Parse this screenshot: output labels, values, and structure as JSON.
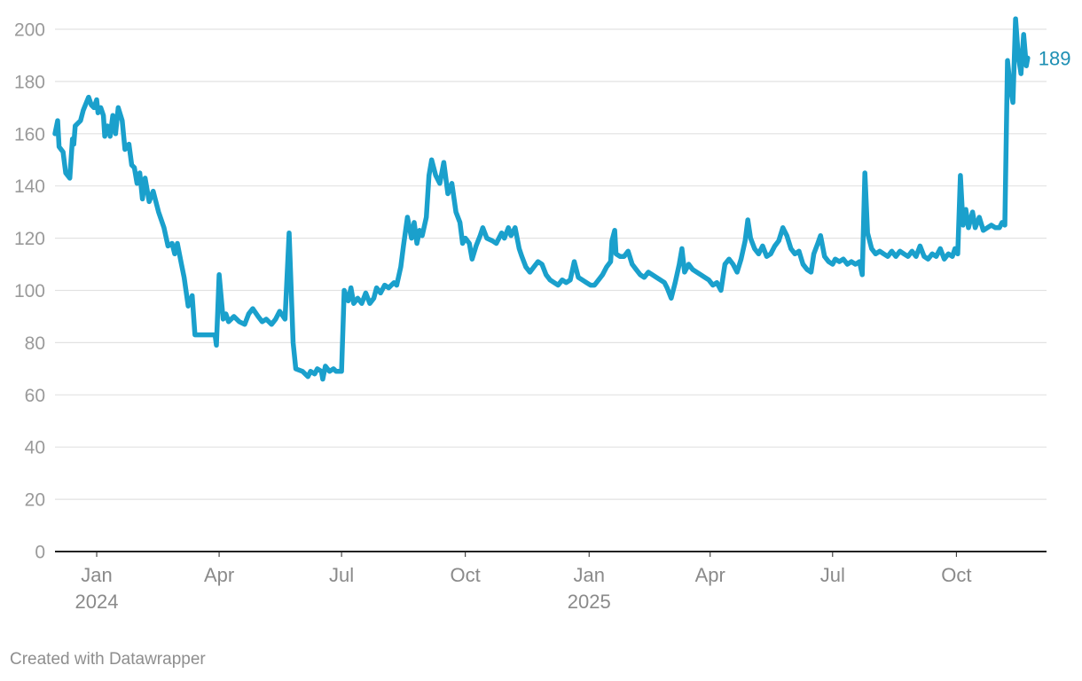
{
  "chart_data": {
    "type": "line",
    "title": "",
    "xlabel": "",
    "ylabel": "",
    "ylim": [
      0,
      200
    ],
    "xlim": [
      "2023-12-01",
      "2025-12-07"
    ],
    "yticks": [
      {
        "value": 0,
        "label": "0"
      },
      {
        "value": 20,
        "label": "20"
      },
      {
        "value": 40,
        "label": "40"
      },
      {
        "value": 60,
        "label": "60"
      },
      {
        "value": 80,
        "label": "80"
      },
      {
        "value": 100,
        "label": "100"
      },
      {
        "value": 120,
        "label": "120"
      },
      {
        "value": 140,
        "label": "140"
      },
      {
        "value": 160,
        "label": "160"
      },
      {
        "value": 180,
        "label": "180"
      },
      {
        "value": 200,
        "label": "200"
      }
    ],
    "xticks": [
      {
        "date": "2024-01-01",
        "label": "Jan",
        "sublabel": "2024"
      },
      {
        "date": "2024-04-01",
        "label": "Apr",
        "sublabel": ""
      },
      {
        "date": "2024-07-01",
        "label": "Jul",
        "sublabel": ""
      },
      {
        "date": "2024-10-01",
        "label": "Oct",
        "sublabel": ""
      },
      {
        "date": "2025-01-01",
        "label": "Jan",
        "sublabel": "2025"
      },
      {
        "date": "2025-04-01",
        "label": "Apr",
        "sublabel": ""
      },
      {
        "date": "2025-07-01",
        "label": "Jul",
        "sublabel": ""
      },
      {
        "date": "2025-10-01",
        "label": "Oct",
        "sublabel": ""
      }
    ],
    "grid": true,
    "color": "#1aa0cc",
    "end_label": "189",
    "series": [
      {
        "points": [
          [
            "2023-12-01",
            160
          ],
          [
            "2023-12-03",
            165
          ],
          [
            "2023-12-04",
            155
          ],
          [
            "2023-12-07",
            153
          ],
          [
            "2023-12-09",
            145
          ],
          [
            "2023-12-12",
            143
          ],
          [
            "2023-12-14",
            158
          ],
          [
            "2023-12-15",
            156
          ],
          [
            "2023-12-16",
            163
          ],
          [
            "2023-12-20",
            165
          ],
          [
            "2023-12-22",
            169
          ],
          [
            "2023-12-26",
            174
          ],
          [
            "2023-12-28",
            171
          ],
          [
            "2023-12-30",
            170
          ],
          [
            "2024-01-01",
            173
          ],
          [
            "2024-01-02",
            168
          ],
          [
            "2024-01-04",
            170
          ],
          [
            "2024-01-06",
            167
          ],
          [
            "2024-01-07",
            159
          ],
          [
            "2024-01-09",
            163
          ],
          [
            "2024-01-11",
            159
          ],
          [
            "2024-01-13",
            167
          ],
          [
            "2024-01-15",
            160
          ],
          [
            "2024-01-17",
            170
          ],
          [
            "2024-01-20",
            165
          ],
          [
            "2024-01-22",
            154
          ],
          [
            "2024-01-25",
            156
          ],
          [
            "2024-01-27",
            148
          ],
          [
            "2024-01-29",
            147
          ],
          [
            "2024-01-31",
            141
          ],
          [
            "2024-02-02",
            145
          ],
          [
            "2024-02-04",
            135
          ],
          [
            "2024-02-06",
            143
          ],
          [
            "2024-02-09",
            134
          ],
          [
            "2024-02-12",
            138
          ],
          [
            "2024-02-16",
            130
          ],
          [
            "2024-02-20",
            124
          ],
          [
            "2024-02-23",
            117
          ],
          [
            "2024-02-26",
            118
          ],
          [
            "2024-02-28",
            114
          ],
          [
            "2024-03-01",
            118
          ],
          [
            "2024-03-04",
            110
          ],
          [
            "2024-03-06",
            105
          ],
          [
            "2024-03-09",
            94
          ],
          [
            "2024-03-12",
            98
          ],
          [
            "2024-03-14",
            83
          ],
          [
            "2024-03-18",
            83
          ],
          [
            "2024-03-22",
            83
          ],
          [
            "2024-03-26",
            83
          ],
          [
            "2024-03-29",
            83
          ],
          [
            "2024-03-30",
            79
          ],
          [
            "2024-04-01",
            106
          ],
          [
            "2024-04-04",
            89
          ],
          [
            "2024-04-06",
            91
          ],
          [
            "2024-04-08",
            88
          ],
          [
            "2024-04-12",
            90
          ],
          [
            "2024-04-16",
            88
          ],
          [
            "2024-04-20",
            87
          ],
          [
            "2024-04-23",
            91
          ],
          [
            "2024-04-26",
            93
          ],
          [
            "2024-04-30",
            90
          ],
          [
            "2024-05-03",
            88
          ],
          [
            "2024-05-06",
            89
          ],
          [
            "2024-05-10",
            87
          ],
          [
            "2024-05-13",
            89
          ],
          [
            "2024-05-16",
            92
          ],
          [
            "2024-05-20",
            89
          ],
          [
            "2024-05-23",
            122
          ],
          [
            "2024-05-26",
            80
          ],
          [
            "2024-05-28",
            70
          ],
          [
            "2024-06-02",
            69
          ],
          [
            "2024-06-06",
            67
          ],
          [
            "2024-06-08",
            69
          ],
          [
            "2024-06-11",
            68
          ],
          [
            "2024-06-13",
            70
          ],
          [
            "2024-06-16",
            69
          ],
          [
            "2024-06-17",
            66
          ],
          [
            "2024-06-19",
            71
          ],
          [
            "2024-06-22",
            69
          ],
          [
            "2024-06-25",
            70
          ],
          [
            "2024-06-27",
            69
          ],
          [
            "2024-07-01",
            69
          ],
          [
            "2024-07-03",
            100
          ],
          [
            "2024-07-06",
            96
          ],
          [
            "2024-07-08",
            101
          ],
          [
            "2024-07-10",
            95
          ],
          [
            "2024-07-13",
            97
          ],
          [
            "2024-07-16",
            95
          ],
          [
            "2024-07-19",
            99
          ],
          [
            "2024-07-22",
            95
          ],
          [
            "2024-07-25",
            97
          ],
          [
            "2024-07-27",
            101
          ],
          [
            "2024-07-30",
            99
          ],
          [
            "2024-08-02",
            102
          ],
          [
            "2024-08-05",
            101
          ],
          [
            "2024-08-09",
            103
          ],
          [
            "2024-08-11",
            102
          ],
          [
            "2024-08-14",
            109
          ],
          [
            "2024-08-16",
            117
          ],
          [
            "2024-08-19",
            128
          ],
          [
            "2024-08-22",
            120
          ],
          [
            "2024-08-24",
            126
          ],
          [
            "2024-08-26",
            118
          ],
          [
            "2024-08-28",
            123
          ],
          [
            "2024-08-30",
            121
          ],
          [
            "2024-09-02",
            128
          ],
          [
            "2024-09-04",
            144
          ],
          [
            "2024-09-06",
            150
          ],
          [
            "2024-09-09",
            144
          ],
          [
            "2024-09-12",
            141
          ],
          [
            "2024-09-15",
            149
          ],
          [
            "2024-09-18",
            137
          ],
          [
            "2024-09-21",
            141
          ],
          [
            "2024-09-24",
            130
          ],
          [
            "2024-09-27",
            126
          ],
          [
            "2024-09-29",
            118
          ],
          [
            "2024-10-01",
            120
          ],
          [
            "2024-10-04",
            118
          ],
          [
            "2024-10-06",
            112
          ],
          [
            "2024-10-09",
            117
          ],
          [
            "2024-10-12",
            121
          ],
          [
            "2024-10-14",
            124
          ],
          [
            "2024-10-17",
            120
          ],
          [
            "2024-10-21",
            119
          ],
          [
            "2024-10-24",
            118
          ],
          [
            "2024-10-28",
            122
          ],
          [
            "2024-10-30",
            120
          ],
          [
            "2024-11-02",
            124
          ],
          [
            "2024-11-04",
            121
          ],
          [
            "2024-11-07",
            124
          ],
          [
            "2024-11-10",
            116
          ],
          [
            "2024-11-12",
            113
          ],
          [
            "2024-11-15",
            109
          ],
          [
            "2024-11-18",
            107
          ],
          [
            "2024-11-21",
            109
          ],
          [
            "2024-11-24",
            111
          ],
          [
            "2024-11-27",
            110
          ],
          [
            "2024-11-30",
            106
          ],
          [
            "2024-12-03",
            104
          ],
          [
            "2024-12-06",
            103
          ],
          [
            "2024-12-09",
            102
          ],
          [
            "2024-12-12",
            104
          ],
          [
            "2024-12-15",
            103
          ],
          [
            "2024-12-18",
            104
          ],
          [
            "2024-12-21",
            111
          ],
          [
            "2024-12-24",
            105
          ],
          [
            "2024-12-27",
            104
          ],
          [
            "2024-12-30",
            103
          ],
          [
            "2025-01-02",
            102
          ],
          [
            "2025-01-05",
            102
          ],
          [
            "2025-01-08",
            104
          ],
          [
            "2025-01-11",
            106
          ],
          [
            "2025-01-14",
            109
          ],
          [
            "2025-01-17",
            111
          ],
          [
            "2025-01-18",
            119
          ],
          [
            "2025-01-20",
            123
          ],
          [
            "2025-01-21",
            114
          ],
          [
            "2025-01-24",
            113
          ],
          [
            "2025-01-27",
            113
          ],
          [
            "2025-01-30",
            115
          ],
          [
            "2025-02-02",
            110
          ],
          [
            "2025-02-05",
            108
          ],
          [
            "2025-02-08",
            106
          ],
          [
            "2025-02-11",
            105
          ],
          [
            "2025-02-14",
            107
          ],
          [
            "2025-02-17",
            106
          ],
          [
            "2025-02-20",
            105
          ],
          [
            "2025-02-23",
            104
          ],
          [
            "2025-02-26",
            103
          ],
          [
            "2025-02-28",
            101
          ],
          [
            "2025-03-03",
            97
          ],
          [
            "2025-03-06",
            103
          ],
          [
            "2025-03-09",
            110
          ],
          [
            "2025-03-11",
            116
          ],
          [
            "2025-03-13",
            107
          ],
          [
            "2025-03-16",
            110
          ],
          [
            "2025-03-19",
            108
          ],
          [
            "2025-03-22",
            107
          ],
          [
            "2025-03-25",
            106
          ],
          [
            "2025-03-28",
            105
          ],
          [
            "2025-03-31",
            104
          ],
          [
            "2025-04-03",
            102
          ],
          [
            "2025-04-06",
            103
          ],
          [
            "2025-04-09",
            100
          ],
          [
            "2025-04-12",
            110
          ],
          [
            "2025-04-15",
            112
          ],
          [
            "2025-04-18",
            110
          ],
          [
            "2025-04-21",
            107
          ],
          [
            "2025-04-24",
            112
          ],
          [
            "2025-04-27",
            119
          ],
          [
            "2025-04-29",
            127
          ],
          [
            "2025-05-01",
            120
          ],
          [
            "2025-05-04",
            116
          ],
          [
            "2025-05-07",
            114
          ],
          [
            "2025-05-10",
            117
          ],
          [
            "2025-05-13",
            113
          ],
          [
            "2025-05-16",
            114
          ],
          [
            "2025-05-19",
            117
          ],
          [
            "2025-05-22",
            119
          ],
          [
            "2025-05-25",
            124
          ],
          [
            "2025-05-28",
            121
          ],
          [
            "2025-05-31",
            116
          ],
          [
            "2025-06-03",
            114
          ],
          [
            "2025-06-06",
            115
          ],
          [
            "2025-06-09",
            110
          ],
          [
            "2025-06-12",
            108
          ],
          [
            "2025-06-15",
            107
          ],
          [
            "2025-06-17",
            114
          ],
          [
            "2025-06-20",
            118
          ],
          [
            "2025-06-22",
            121
          ],
          [
            "2025-06-25",
            113
          ],
          [
            "2025-06-28",
            111
          ],
          [
            "2025-07-01",
            110
          ],
          [
            "2025-07-03",
            112
          ],
          [
            "2025-07-06",
            111
          ],
          [
            "2025-07-09",
            112
          ],
          [
            "2025-07-12",
            110
          ],
          [
            "2025-07-15",
            111
          ],
          [
            "2025-07-18",
            110
          ],
          [
            "2025-07-21",
            111
          ],
          [
            "2025-07-23",
            106
          ],
          [
            "2025-07-25",
            145
          ],
          [
            "2025-07-27",
            122
          ],
          [
            "2025-07-30",
            116
          ],
          [
            "2025-08-02",
            114
          ],
          [
            "2025-08-05",
            115
          ],
          [
            "2025-08-08",
            114
          ],
          [
            "2025-08-11",
            113
          ],
          [
            "2025-08-14",
            115
          ],
          [
            "2025-08-17",
            113
          ],
          [
            "2025-08-20",
            115
          ],
          [
            "2025-08-23",
            114
          ],
          [
            "2025-08-26",
            113
          ],
          [
            "2025-08-29",
            115
          ],
          [
            "2025-09-01",
            113
          ],
          [
            "2025-09-04",
            117
          ],
          [
            "2025-09-07",
            113
          ],
          [
            "2025-09-10",
            112
          ],
          [
            "2025-09-13",
            114
          ],
          [
            "2025-09-16",
            113
          ],
          [
            "2025-09-19",
            116
          ],
          [
            "2025-09-22",
            112
          ],
          [
            "2025-09-25",
            114
          ],
          [
            "2025-09-28",
            113
          ],
          [
            "2025-09-30",
            116
          ],
          [
            "2025-10-02",
            114
          ],
          [
            "2025-10-04",
            144
          ],
          [
            "2025-10-06",
            125
          ],
          [
            "2025-10-08",
            131
          ],
          [
            "2025-10-10",
            124
          ],
          [
            "2025-10-13",
            130
          ],
          [
            "2025-10-15",
            124
          ],
          [
            "2025-10-18",
            128
          ],
          [
            "2025-10-21",
            123
          ],
          [
            "2025-10-24",
            124
          ],
          [
            "2025-10-27",
            125
          ],
          [
            "2025-10-30",
            124
          ],
          [
            "2025-11-02",
            124
          ],
          [
            "2025-11-04",
            126
          ],
          [
            "2025-11-06",
            125
          ],
          [
            "2025-11-08",
            188
          ],
          [
            "2025-11-10",
            178
          ],
          [
            "2025-11-12",
            172
          ],
          [
            "2025-11-14",
            204
          ],
          [
            "2025-11-16",
            190
          ],
          [
            "2025-11-18",
            183
          ],
          [
            "2025-11-20",
            198
          ],
          [
            "2025-11-22",
            186
          ],
          [
            "2025-11-23",
            189
          ]
        ]
      }
    ]
  },
  "footer": {
    "credit": "Created with Datawrapper"
  }
}
